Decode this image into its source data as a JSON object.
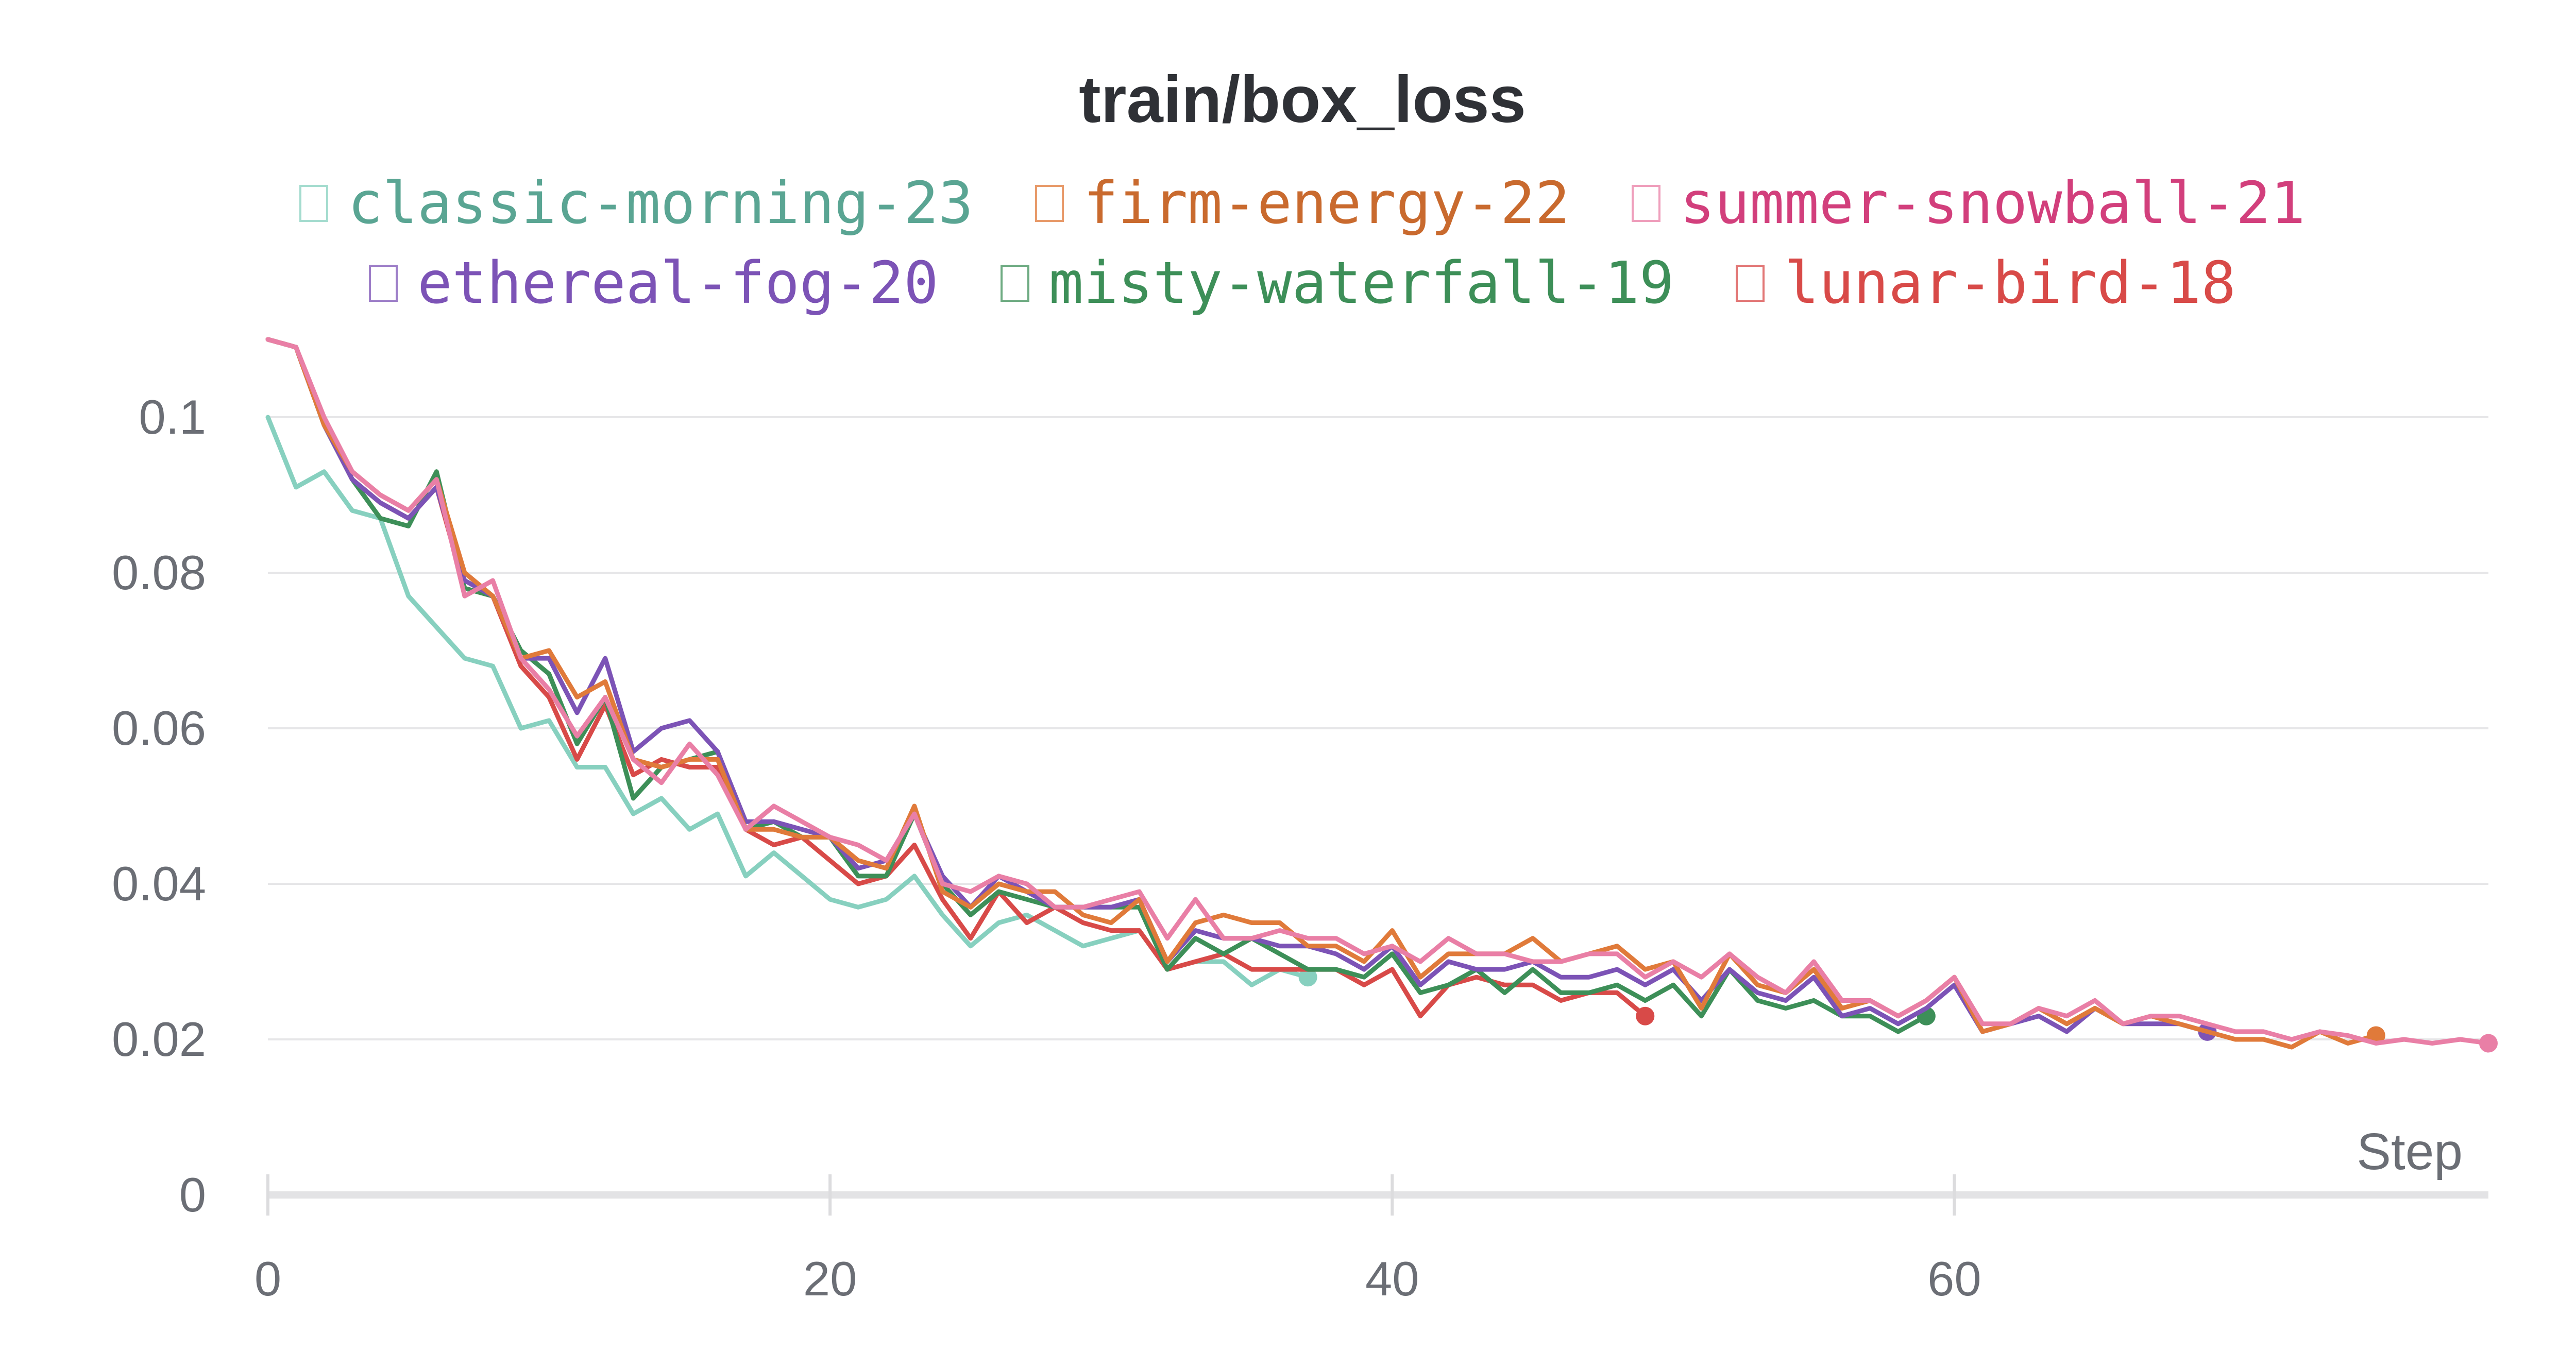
{
  "chart_data": {
    "type": "line",
    "title": "train/box_loss",
    "xlabel": "Step",
    "ylabel": "",
    "xlim": [
      0,
      79
    ],
    "ylim": [
      0,
      0.11
    ],
    "x_ticks": [
      0,
      20,
      40,
      60
    ],
    "x_tick_labels": [
      "0",
      "20",
      "40",
      "60"
    ],
    "y_ticks": [
      0,
      0.02,
      0.04,
      0.06,
      0.08,
      0.1
    ],
    "y_tick_labels": [
      "0",
      "0.02",
      "0.04",
      "0.06",
      "0.08",
      "0.1"
    ],
    "grid": true,
    "legend_position": "top",
    "series": [
      {
        "name": "classic-morning-23",
        "color": "#87d0bf",
        "values": [
          0.1,
          0.091,
          0.093,
          0.088,
          0.087,
          0.077,
          0.073,
          0.069,
          0.068,
          0.06,
          0.061,
          0.055,
          0.055,
          0.049,
          0.051,
          0.047,
          0.049,
          0.041,
          0.044,
          0.041,
          0.038,
          0.037,
          0.038,
          0.041,
          0.036,
          0.032,
          0.035,
          0.036,
          0.034,
          0.032,
          0.033,
          0.034,
          0.029,
          0.03,
          0.03,
          0.027,
          0.029,
          0.028
        ]
      },
      {
        "name": "firm-energy-22",
        "color": "#e07a3a",
        "values": [
          0.11,
          0.109,
          0.099,
          0.093,
          0.09,
          0.088,
          0.092,
          0.08,
          0.077,
          0.069,
          0.07,
          0.064,
          0.066,
          0.056,
          0.055,
          0.056,
          0.056,
          0.047,
          0.047,
          0.046,
          0.046,
          0.043,
          0.042,
          0.05,
          0.039,
          0.037,
          0.04,
          0.039,
          0.039,
          0.036,
          0.035,
          0.038,
          0.03,
          0.035,
          0.036,
          0.035,
          0.035,
          0.032,
          0.032,
          0.03,
          0.034,
          0.028,
          0.031,
          0.031,
          0.031,
          0.033,
          0.03,
          0.031,
          0.032,
          0.029,
          0.03,
          0.024,
          0.031,
          0.027,
          0.026,
          0.029,
          0.024,
          0.025,
          0.023,
          0.025,
          0.028,
          0.021,
          0.022,
          0.024,
          0.022,
          0.024,
          0.022,
          0.023,
          0.022,
          0.021,
          0.02,
          0.02,
          0.019,
          0.021,
          0.0195,
          0.0205
        ]
      },
      {
        "name": "summer-snowball-21",
        "color": "#e97fa6",
        "values": [
          0.11,
          0.109,
          0.1,
          0.093,
          0.09,
          0.088,
          0.092,
          0.077,
          0.079,
          0.069,
          0.065,
          0.059,
          0.064,
          0.056,
          0.053,
          0.058,
          0.054,
          0.047,
          0.05,
          0.048,
          0.046,
          0.045,
          0.043,
          0.049,
          0.04,
          0.039,
          0.041,
          0.04,
          0.037,
          0.037,
          0.038,
          0.039,
          0.033,
          0.038,
          0.033,
          0.033,
          0.034,
          0.033,
          0.033,
          0.031,
          0.032,
          0.03,
          0.033,
          0.031,
          0.031,
          0.03,
          0.03,
          0.031,
          0.031,
          0.028,
          0.03,
          0.028,
          0.031,
          0.028,
          0.026,
          0.03,
          0.025,
          0.025,
          0.023,
          0.025,
          0.028,
          0.022,
          0.022,
          0.024,
          0.023,
          0.025,
          0.022,
          0.023,
          0.023,
          0.022,
          0.021,
          0.021,
          0.02,
          0.021,
          0.0205,
          0.0195,
          0.02,
          0.0195,
          0.02,
          0.0195
        ]
      },
      {
        "name": "ethereal-fog-20",
        "color": "#7c53b6",
        "values": [
          0.11,
          0.109,
          0.099,
          0.092,
          0.089,
          0.087,
          0.091,
          0.079,
          0.077,
          0.069,
          0.069,
          0.062,
          0.069,
          0.057,
          0.06,
          0.061,
          0.057,
          0.048,
          0.048,
          0.047,
          0.046,
          0.042,
          0.043,
          0.049,
          0.041,
          0.037,
          0.041,
          0.039,
          0.037,
          0.037,
          0.037,
          0.038,
          0.03,
          0.034,
          0.033,
          0.033,
          0.032,
          0.032,
          0.031,
          0.029,
          0.032,
          0.027,
          0.03,
          0.029,
          0.029,
          0.03,
          0.028,
          0.028,
          0.029,
          0.027,
          0.029,
          0.025,
          0.029,
          0.026,
          0.025,
          0.028,
          0.023,
          0.024,
          0.022,
          0.024,
          0.027,
          0.021,
          0.022,
          0.023,
          0.021,
          0.024,
          0.022,
          0.022,
          0.022,
          0.021
        ]
      },
      {
        "name": "misty-waterfall-19",
        "color": "#3d8f58",
        "values": [
          0.11,
          0.109,
          0.099,
          0.092,
          0.087,
          0.086,
          0.093,
          0.078,
          0.077,
          0.07,
          0.067,
          0.058,
          0.064,
          0.051,
          0.055,
          0.056,
          0.057,
          0.047,
          0.048,
          0.046,
          0.046,
          0.041,
          0.041,
          0.049,
          0.04,
          0.036,
          0.039,
          0.038,
          0.037,
          0.037,
          0.037,
          0.037,
          0.029,
          0.033,
          0.031,
          0.033,
          0.031,
          0.029,
          0.029,
          0.028,
          0.031,
          0.026,
          0.027,
          0.029,
          0.026,
          0.029,
          0.026,
          0.026,
          0.027,
          0.025,
          0.027,
          0.023,
          0.029,
          0.025,
          0.024,
          0.025,
          0.023,
          0.023,
          0.021,
          0.023
        ]
      },
      {
        "name": "lunar-bird-18",
        "color": "#d84a48",
        "values": [
          0.11,
          0.109,
          0.099,
          0.092,
          0.089,
          0.087,
          0.091,
          0.078,
          0.077,
          0.068,
          0.064,
          0.056,
          0.063,
          0.054,
          0.056,
          0.055,
          0.055,
          0.047,
          0.045,
          0.046,
          0.043,
          0.04,
          0.041,
          0.045,
          0.038,
          0.033,
          0.039,
          0.035,
          0.037,
          0.035,
          0.034,
          0.034,
          0.029,
          0.03,
          0.031,
          0.029,
          0.029,
          0.029,
          0.029,
          0.027,
          0.029,
          0.023,
          0.027,
          0.028,
          0.027,
          0.027,
          0.025,
          0.026,
          0.026,
          0.023
        ]
      }
    ]
  }
}
